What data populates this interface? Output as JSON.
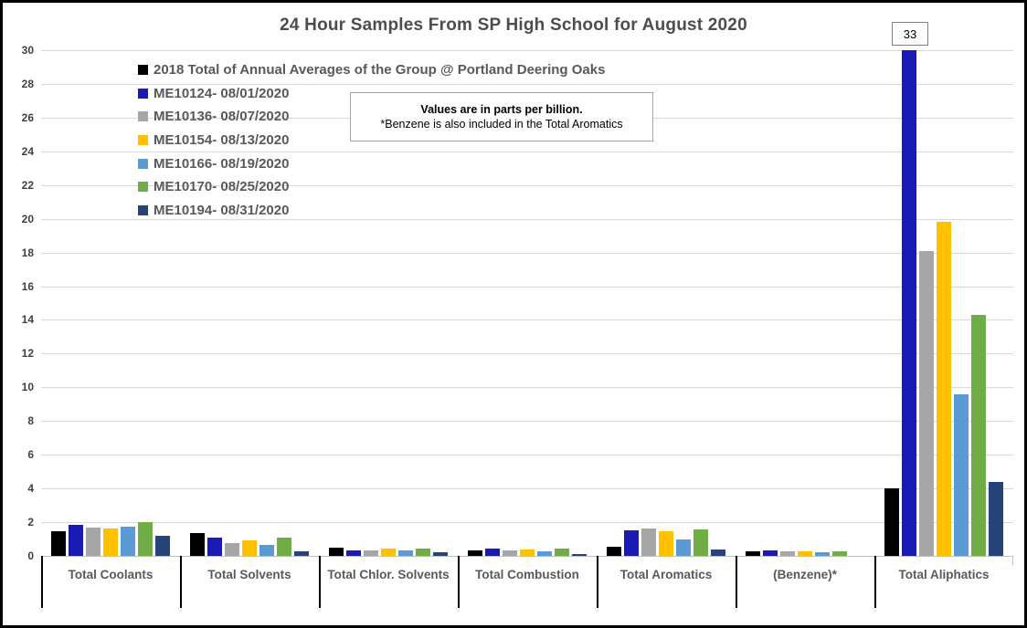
{
  "page": {
    "background": "#FFFFFF",
    "frame_color": "#000000"
  },
  "title": "24 Hour Samples From SP High School for August 2020",
  "note": {
    "line1": "Values are in parts per billion.",
    "line2": "*Benzene is also included in the Total Aromatics"
  },
  "annotation": {
    "text": "33",
    "category_index": 6,
    "series_index": 1
  },
  "chart_data": {
    "type": "bar",
    "title": "24 Hour Samples From SP High School for August 2020",
    "categories": [
      "Total Coolants",
      "Total Solvents",
      "Total Chlor. Solvents",
      "Total Combustion",
      "Total Aromatics",
      "(Benzene)*",
      "Total Aliphatics"
    ],
    "series": [
      {
        "name": "2018 Total of Annual Averages of the Group @ Portland Deering Oaks",
        "color": "#000000",
        "values": [
          1.45,
          1.35,
          0.5,
          0.35,
          0.55,
          0.25,
          4.0
        ]
      },
      {
        "name": "ME10124- 08/01/2020",
        "color": "#1A1AB4",
        "values": [
          1.85,
          1.1,
          0.3,
          0.45,
          1.5,
          0.3,
          33
        ]
      },
      {
        "name": "ME10136- 08/07/2020",
        "color": "#A6A6A6",
        "values": [
          1.7,
          0.75,
          0.35,
          0.35,
          1.6,
          0.25,
          18.1
        ]
      },
      {
        "name": "ME10154- 08/13/2020",
        "color": "#FFC000",
        "values": [
          1.65,
          0.9,
          0.45,
          0.4,
          1.45,
          0.25,
          19.8
        ]
      },
      {
        "name": "ME10166- 08/19/2020",
        "color": "#5B9BD5",
        "values": [
          1.75,
          0.65,
          0.3,
          0.25,
          1.0,
          0.2,
          9.6
        ]
      },
      {
        "name": "ME10170- 08/25/2020",
        "color": "#70AD47",
        "values": [
          2.0,
          1.1,
          0.45,
          0.45,
          1.55,
          0.25,
          14.3
        ]
      },
      {
        "name": "ME10194- 08/31/2020",
        "color": "#264478",
        "values": [
          1.2,
          0.25,
          0.2,
          0.1,
          0.4,
          0,
          4.4
        ]
      }
    ],
    "ylabel": "",
    "xlabel": "",
    "ylim": [
      0,
      30
    ],
    "ytick_step": 2,
    "grid": true,
    "gridline_color": "#D9D9D9",
    "axis_color": "#BFBFBF",
    "label_color": "#595959",
    "legend_position": "top-left"
  }
}
